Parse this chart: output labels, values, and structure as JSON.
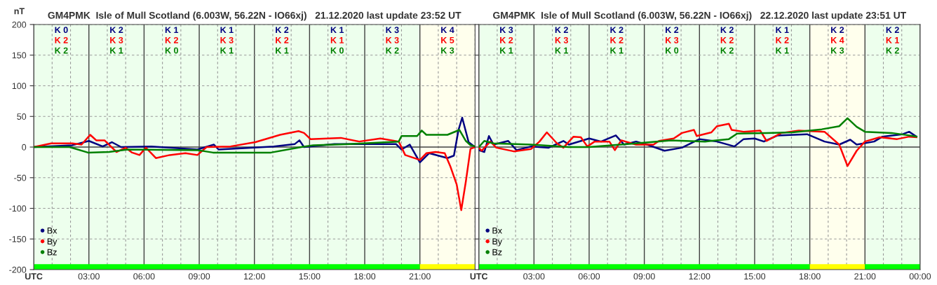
{
  "chart_data": [
    {
      "type": "line",
      "title": "GM4PMK  Isle of Mull Scotland (6.003W, 56.22N - IO66xj)   21.12.2020 last update 23:52 UT",
      "ylabel": "nT",
      "legend": "bottom left",
      "grid": true,
      "xlim": [
        0,
        24
      ],
      "ylim": [
        -200,
        200
      ],
      "xticks": [
        {
          "value": 0,
          "label": "UTC"
        },
        {
          "value": 1,
          "label": null
        },
        {
          "value": 2,
          "label": null
        },
        {
          "value": 3,
          "label": "03:00"
        },
        {
          "value": 4,
          "label": null
        },
        {
          "value": 5,
          "label": null
        },
        {
          "value": 6,
          "label": "06:00"
        },
        {
          "value": 7,
          "label": null
        },
        {
          "value": 8,
          "label": null
        },
        {
          "value": 9,
          "label": "09:00"
        },
        {
          "value": 10,
          "label": null
        },
        {
          "value": 11,
          "label": null
        },
        {
          "value": 12,
          "label": "12:00"
        },
        {
          "value": 13,
          "label": null
        },
        {
          "value": 14,
          "label": null
        },
        {
          "value": 15,
          "label": "15:00"
        },
        {
          "value": 16,
          "label": null
        },
        {
          "value": 17,
          "label": null
        },
        {
          "value": 18,
          "label": "18:00"
        },
        {
          "value": 19,
          "label": null
        },
        {
          "value": 20,
          "label": null
        },
        {
          "value": 21,
          "label": "21:00"
        },
        {
          "value": 22,
          "label": null
        },
        {
          "value": 23,
          "label": null
        },
        {
          "value": 24,
          "label": null
        }
      ],
      "yticks": [
        -200,
        -150,
        -100,
        -50,
        0,
        50,
        100,
        150,
        200
      ],
      "bands": [
        {
          "axis": "x",
          "from": 0,
          "to": 21,
          "color": "#00ff00"
        },
        {
          "axis": "x",
          "from": 21,
          "to": 24,
          "color": "#ffff00"
        }
      ],
      "series": [
        {
          "name": "Bx",
          "color": "#000080",
          "x": [
            0,
            2.1,
            3.0,
            3.75,
            4.25,
            4.75,
            6.4,
            8.9,
            9.8,
            10.05,
            13.05,
            14.2,
            14.45,
            14.7,
            16.35,
            19.7,
            20.0,
            20.45,
            21.0,
            21.5,
            22.5,
            22.85,
            23.1,
            23.3,
            23.65,
            24
          ],
          "values": [
            0,
            3,
            10,
            1,
            8,
            0,
            1,
            -4,
            4,
            -4,
            1,
            5,
            11,
            0,
            5,
            5,
            -4,
            4,
            -25,
            -10,
            -18,
            -14,
            28,
            48,
            8,
            0
          ]
        },
        {
          "name": "By",
          "color": "#ff0000",
          "x": [
            0,
            0.95,
            2.1,
            2.6,
            3.07,
            3.4,
            3.85,
            4.5,
            5.0,
            5.35,
            5.75,
            6.1,
            6.65,
            7.4,
            8.25,
            8.9,
            9.4,
            10.7,
            12.05,
            13.4,
            14.4,
            14.7,
            15.05,
            16.7,
            17.7,
            18.85,
            19.85,
            20.2,
            21.0,
            21.35,
            21.85,
            22.35,
            22.65,
            23.0,
            23.25,
            23.5,
            23.75,
            24
          ],
          "values": [
            0,
            6,
            6,
            4,
            20,
            11,
            11,
            -8,
            -1,
            -9,
            -13,
            -1,
            -18,
            -13,
            -10,
            -13,
            0,
            1,
            8,
            20,
            26,
            23,
            13,
            15,
            9,
            14,
            9,
            -13,
            -21,
            -10,
            -8,
            -10,
            -31,
            -61,
            -103,
            -56,
            -3,
            0
          ]
        },
        {
          "name": "Bz",
          "color": "#008000",
          "x": [
            0,
            1.95,
            2.95,
            4.1,
            5.1,
            8.9,
            9.75,
            12.9,
            14.55,
            15.2,
            17.2,
            19.85,
            20.0,
            20.85,
            21.1,
            21.35,
            22.5,
            23.15,
            23.5,
            23.75,
            24
          ],
          "values": [
            0,
            0,
            -9,
            -8,
            -4,
            -5,
            -9,
            -9,
            0,
            3,
            5,
            9,
            18,
            18,
            27,
            20,
            20,
            28,
            10,
            3,
            1
          ]
        }
      ],
      "annotations": [
        "K 0",
        "K 2",
        "K 2",
        "K 2",
        "K 3",
        "K 1",
        "K 1",
        "K 2",
        "K 0",
        "K 1",
        "K 3",
        "K 1",
        "K 2",
        "K 2",
        "K 1",
        "K 1",
        "K 1",
        "K 0",
        "K 3",
        "K 3",
        "K 2",
        "K 4",
        "K 5",
        "K 3"
      ]
    },
    {
      "type": "line",
      "title": "GM4PMK  Isle of Mull Scotland (6.003W, 56.22N - IO66xj)   22.12.2020 last update 23:51 UT",
      "legend": "bottom left",
      "grid": true,
      "tick_labels": "x",
      "xlim": [
        0,
        24
      ],
      "ylim": [
        -200,
        200
      ],
      "xticks": [
        {
          "value": 0,
          "label": "UTC"
        },
        {
          "value": 1,
          "label": null
        },
        {
          "value": 2,
          "label": null
        },
        {
          "value": 3,
          "label": "03:00"
        },
        {
          "value": 4,
          "label": null
        },
        {
          "value": 5,
          "label": null
        },
        {
          "value": 6,
          "label": "06:00"
        },
        {
          "value": 7,
          "label": null
        },
        {
          "value": 8,
          "label": null
        },
        {
          "value": 9,
          "label": "09:00"
        },
        {
          "value": 10,
          "label": null
        },
        {
          "value": 11,
          "label": null
        },
        {
          "value": 12,
          "label": "12:00"
        },
        {
          "value": 13,
          "label": null
        },
        {
          "value": 14,
          "label": null
        },
        {
          "value": 15,
          "label": "15:00"
        },
        {
          "value": 16,
          "label": null
        },
        {
          "value": 17,
          "label": null
        },
        {
          "value": 18,
          "label": "18:00"
        },
        {
          "value": 19,
          "label": null
        },
        {
          "value": 20,
          "label": null
        },
        {
          "value": 21,
          "label": "21:00"
        },
        {
          "value": 22,
          "label": null
        },
        {
          "value": 23,
          "label": null
        },
        {
          "value": 24,
          "label": "00:00"
        }
      ],
      "yticks": [
        -200,
        -150,
        -100,
        -50,
        0,
        50,
        100,
        150,
        200
      ],
      "bands": [
        {
          "axis": "x",
          "from": 0,
          "to": 18,
          "color": "#00ff00"
        },
        {
          "axis": "x",
          "from": 18,
          "to": 21,
          "color": "#ffff00"
        },
        {
          "axis": "x",
          "from": 21,
          "to": 24,
          "color": "#00ff00"
        }
      ],
      "series": [
        {
          "name": "Bx",
          "color": "#000080",
          "x": [
            0,
            0.3,
            0.55,
            0.8,
            1.6,
            2.05,
            2.85,
            3.8,
            4.6,
            4.9,
            6.0,
            6.65,
            7.45,
            7.9,
            8.55,
            9.15,
            10.1,
            11.05,
            12.0,
            12.95,
            13.9,
            14.4,
            15.0,
            15.5,
            16.25,
            17.85,
            18.8,
            19.6,
            20.2,
            20.55,
            21.5,
            21.95,
            23.05,
            23.4,
            23.8
          ],
          "values": [
            -5,
            -8,
            18,
            4,
            10,
            -5,
            1,
            -1,
            10,
            4,
            14,
            9,
            19,
            4,
            9,
            4,
            -6,
            -1,
            13,
            9,
            1,
            13,
            14,
            9,
            19,
            21,
            9,
            4,
            12,
            4,
            9,
            17,
            21,
            25,
            17
          ]
        },
        {
          "name": "By",
          "color": "#ff0000",
          "x": [
            0,
            0.15,
            0.63,
            0.95,
            1.9,
            2.85,
            3.3,
            3.7,
            4.25,
            4.6,
            5.15,
            5.55,
            5.9,
            6.3,
            7.1,
            7.4,
            7.75,
            8.55,
            9.5,
            9.8,
            10.6,
            11.05,
            11.7,
            11.85,
            12.65,
            12.95,
            13.6,
            13.75,
            14.4,
            15.3,
            15.65,
            16.45,
            17.4,
            18.8,
            19.6,
            20.05,
            20.55,
            21.0,
            21.8,
            22.75,
            23.4,
            23.8
          ],
          "values": [
            -1,
            -6,
            9,
            -1,
            -7,
            -3,
            9,
            24,
            6,
            -1,
            17,
            16,
            1,
            9,
            9,
            -5,
            11,
            4,
            4,
            10,
            14,
            23,
            28,
            18,
            24,
            34,
            38,
            28,
            25,
            27,
            10,
            23,
            27,
            25,
            4,
            -31,
            -6,
            9,
            16,
            13,
            17,
            16
          ]
        },
        {
          "name": "Bz",
          "color": "#008000",
          "x": [
            0,
            0.3,
            0.8,
            2.85,
            4.9,
            6.0,
            8.55,
            10.45,
            12.3,
            13.6,
            14.05,
            15.65,
            17.05,
            18.65,
            19.6,
            20.05,
            20.55,
            21.0,
            22.45,
            23.4,
            23.8
          ],
          "values": [
            0,
            10,
            6,
            4,
            0,
            0,
            6,
            11,
            9,
            13,
            22,
            23,
            24,
            29,
            34,
            47,
            33,
            25,
            23,
            19,
            17
          ]
        }
      ],
      "annotations": [
        "K 3",
        "K 2",
        "K 1",
        "K 2",
        "K 3",
        "K 1",
        "K 2",
        "K 2",
        "K 1",
        "K 2",
        "K 3",
        "K 0",
        "K 2",
        "K 2",
        "K 2",
        "K 1",
        "K 2",
        "K 1",
        "K 2",
        "K 4",
        "K 3",
        "K 2",
        "K 1",
        "K 2"
      ]
    }
  ]
}
